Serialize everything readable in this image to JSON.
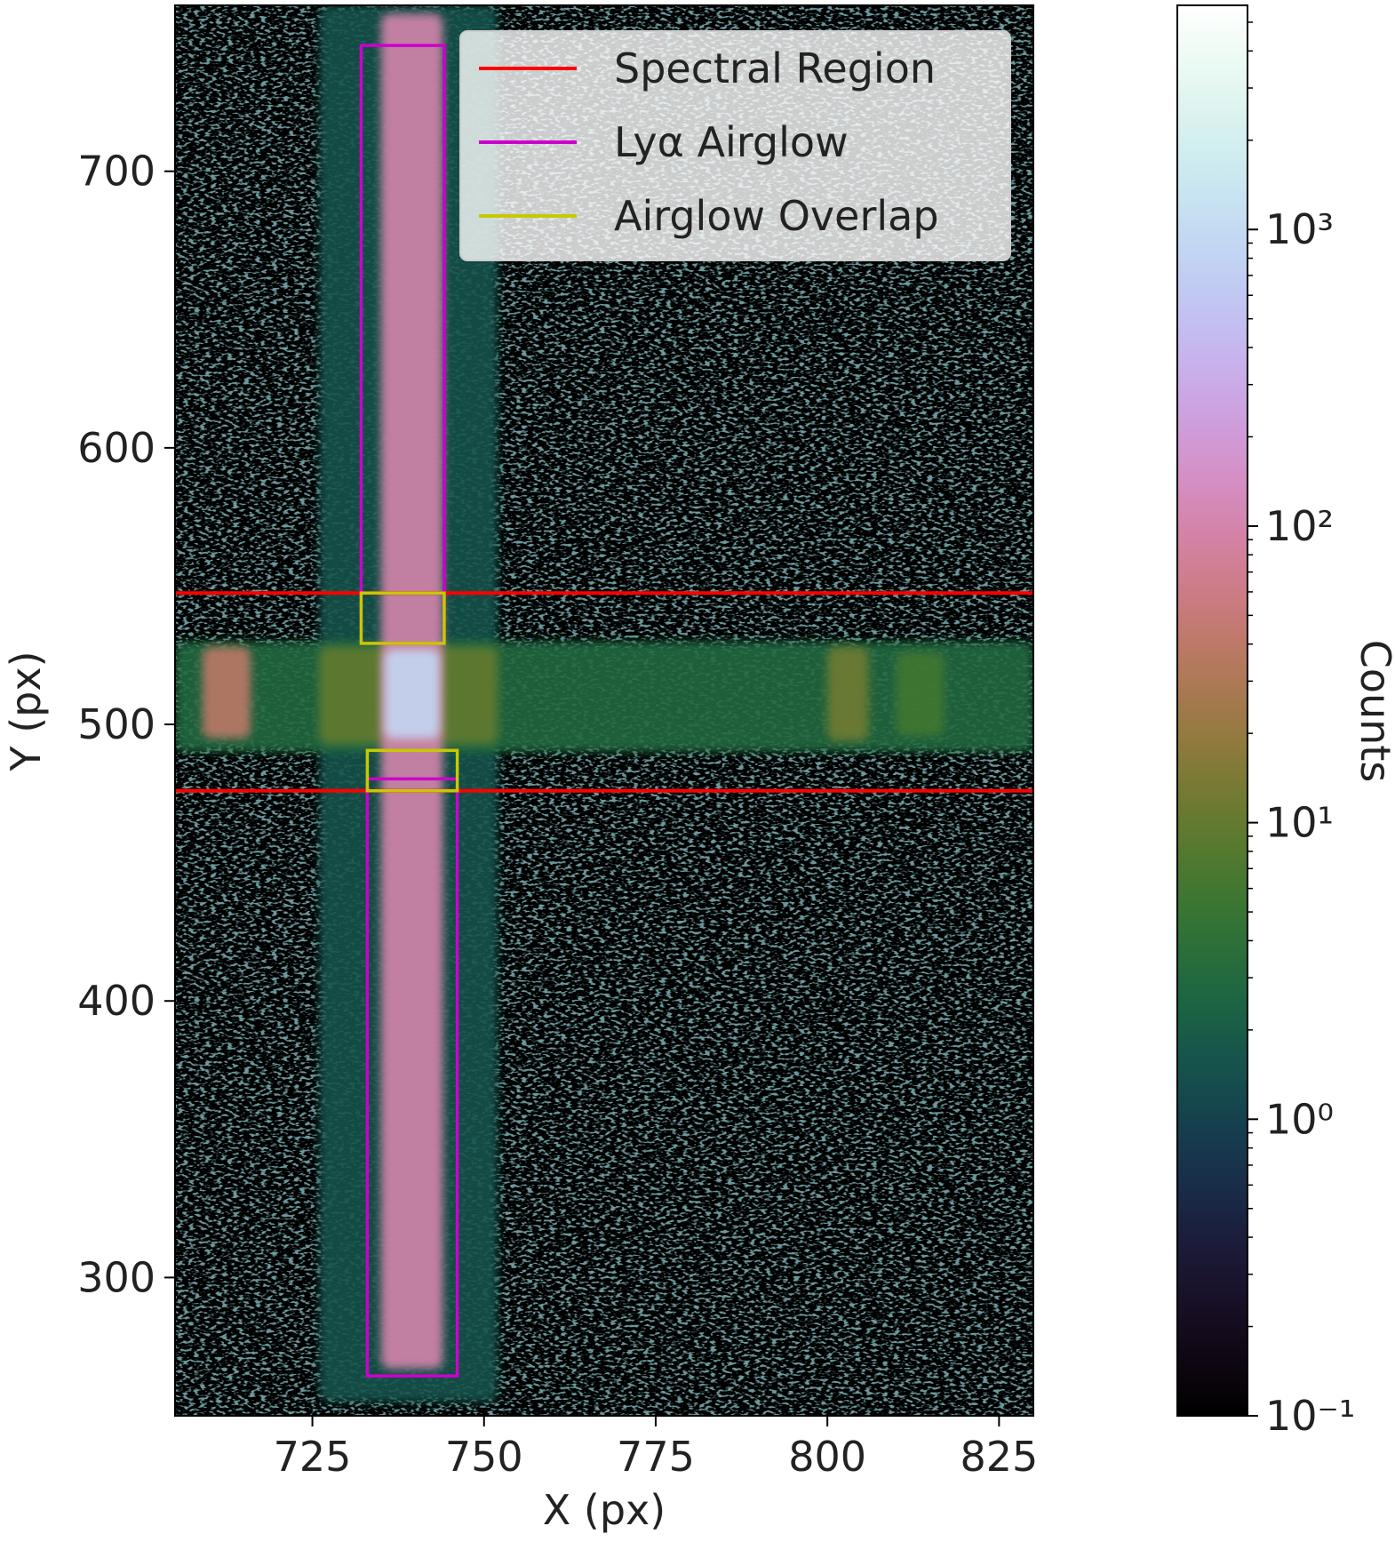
{
  "chart_data": {
    "type": "image",
    "x_label": "X (px)",
    "y_label": "Y (px)",
    "xlim": [
      705,
      830
    ],
    "ylim": [
      250,
      760
    ],
    "xticks": [
      725,
      750,
      775,
      800,
      825
    ],
    "yticks": [
      300,
      400,
      500,
      600,
      700
    ],
    "colormap": "cubehelix",
    "color_scale": "log",
    "colorbar_label": "Counts",
    "clim": [
      0.1,
      5700
    ],
    "cticks": [
      {
        "value": 0.1,
        "label": "10⁻¹"
      },
      {
        "value": 1,
        "label": "10⁰"
      },
      {
        "value": 10,
        "label": "10¹"
      },
      {
        "value": 100,
        "label": "10²"
      },
      {
        "value": 1000,
        "label": "10³"
      }
    ],
    "background_counts": 0.1,
    "features": [
      {
        "x": [
          726,
          752
        ],
        "y": [
          255,
          760
        ],
        "counts": 1.5
      },
      {
        "x": [
          705,
          830
        ],
        "y": [
          490,
          530
        ],
        "counts": 3
      },
      {
        "x": [
          726,
          752
        ],
        "y": [
          493,
          528
        ],
        "counts": 10
      },
      {
        "x": [
          709,
          716
        ],
        "y": [
          495,
          528
        ],
        "counts": 40
      },
      {
        "x": [
          800,
          806
        ],
        "y": [
          494,
          528
        ],
        "counts": 12
      },
      {
        "x": [
          810,
          817
        ],
        "y": [
          496,
          526
        ],
        "counts": 6
      },
      {
        "x": [
          735,
          744
        ],
        "y": [
          267,
          757
        ],
        "counts": 100
      },
      {
        "x": [
          735.5,
          743.5
        ],
        "y": [
          495,
          527
        ],
        "counts": 900
      }
    ],
    "legend_loc": "upper right",
    "overlays": [
      {
        "name": "Spectral Region",
        "color": "#ff0000",
        "hlines": [
          547.5,
          476
        ]
      },
      {
        "name": "Lyα Airglow",
        "color": "#cc00cc",
        "rects": [
          {
            "x": [
              732.1,
              744.2
            ],
            "y": [
              529.3,
              745.5
            ]
          },
          {
            "x": [
              733,
              746.1
            ],
            "y": [
              264.4,
              480.3
            ]
          }
        ]
      },
      {
        "name": "Airglow Overlap",
        "color": "#c8c800",
        "rects": [
          {
            "x": [
              732.1,
              744.2
            ],
            "y": [
              529.3,
              547.5
            ]
          },
          {
            "x": [
              733,
              746.1
            ],
            "y": [
              476,
              490.6
            ]
          }
        ]
      }
    ]
  }
}
